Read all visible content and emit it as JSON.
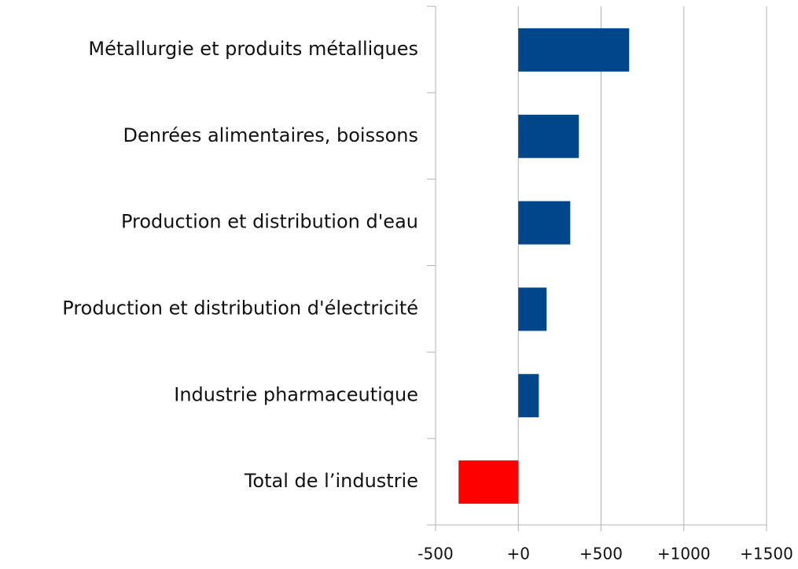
{
  "chart_data": {
    "type": "barh",
    "categories": [
      "Métallurgie et produits métalliques",
      "Denrées alimentaires, boissons",
      "Production et distribution d'eau",
      "Production et distribution d'électricité",
      "Industrie pharmaceutique",
      "Total de l’industrie"
    ],
    "values": [
      670,
      366,
      314,
      171,
      124,
      -361
    ],
    "colors": [
      "#00468b",
      "#00468b",
      "#00468b",
      "#00468b",
      "#00468b",
      "#ff0000"
    ],
    "xlim": [
      -500,
      1500
    ],
    "xticks": [
      -500,
      {
        "value": 0,
        "label": "+0"
      },
      {
        "value": 500,
        "label": "+500"
      },
      {
        "value": 1000,
        "label": "+1000"
      },
      {
        "value": 1500,
        "label": "+1500"
      }
    ],
    "grid": true
  }
}
